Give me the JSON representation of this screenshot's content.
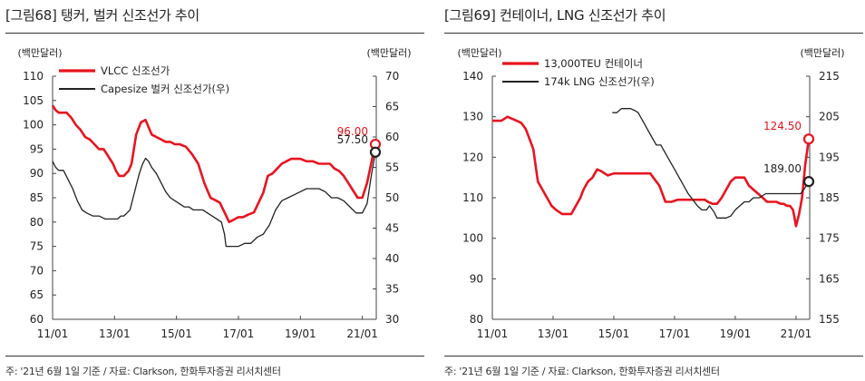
{
  "chart_data": [
    {
      "type": "line",
      "title": "[그림68]  탱커, 벌커 신조선가 추이",
      "ylabel_left": "(백만달러)",
      "ylabel_right": "(백만달러)",
      "ylim_left": [
        60,
        110
      ],
      "ylim_right": [
        30,
        70
      ],
      "yticks_left": [
        "60",
        "65",
        "70",
        "75",
        "80",
        "85",
        "90",
        "95",
        "100",
        "105",
        "110"
      ],
      "yticks_right": [
        "30",
        "35",
        "40",
        "45",
        "50",
        "55",
        "60",
        "65",
        "70"
      ],
      "xlim": [
        2011.0,
        2021.45
      ],
      "xticks": [
        {
          "v": 2011.0,
          "label": "11/01"
        },
        {
          "v": 2013.0,
          "label": "13/01"
        },
        {
          "v": 2015.0,
          "label": "15/01"
        },
        {
          "v": 2017.0,
          "label": "17/01"
        },
        {
          "v": 2019.0,
          "label": "19/01"
        },
        {
          "v": 2021.0,
          "label": "21/01"
        }
      ],
      "legend_placement": "top-left",
      "source": "주: '21년 6월 1일 기준 / 자료: Clarkson, 한화투자증권 리서치센터",
      "series": [
        {
          "name": "VLCC  신조선가",
          "axis": "left",
          "color": "#e8141f",
          "end_label": "96.00",
          "x": [
            2011.0,
            2011.1,
            2011.2,
            2011.45,
            2011.6,
            2011.75,
            2011.9,
            2012.05,
            2012.2,
            2012.35,
            2012.5,
            2012.65,
            2012.8,
            2012.95,
            2013.05,
            2013.15,
            2013.3,
            2013.45,
            2013.55,
            2013.7,
            2013.85,
            2014.0,
            2014.1,
            2014.2,
            2014.35,
            2014.5,
            2014.65,
            2014.8,
            2014.95,
            2015.1,
            2015.3,
            2015.5,
            2015.7,
            2015.9,
            2016.0,
            2016.1,
            2016.25,
            2016.4,
            2016.55,
            2016.7,
            2016.85,
            2017.0,
            2017.15,
            2017.3,
            2017.5,
            2017.65,
            2017.8,
            2017.95,
            2018.1,
            2018.25,
            2018.4,
            2018.55,
            2018.7,
            2018.85,
            2019.0,
            2019.2,
            2019.4,
            2019.6,
            2019.8,
            2019.95,
            2020.1,
            2020.25,
            2020.4,
            2020.55,
            2020.7,
            2020.85,
            2021.0,
            2021.15,
            2021.3,
            2021.42
          ],
          "y": [
            104,
            103,
            102.5,
            102.5,
            101.5,
            100,
            99,
            97.5,
            97,
            96,
            95,
            95,
            93.5,
            92,
            90.5,
            89.5,
            89.5,
            90.5,
            92,
            98,
            100.5,
            101,
            99.5,
            98,
            97.5,
            97,
            96.5,
            96.5,
            96,
            96,
            95.5,
            94,
            92,
            88,
            86.5,
            85,
            84.5,
            84,
            82,
            80,
            80.5,
            81,
            81,
            81.5,
            82,
            84,
            86,
            89.5,
            90,
            91,
            92,
            92.5,
            93,
            93,
            93,
            92.5,
            92.5,
            92,
            92,
            92,
            91,
            90.5,
            89.5,
            88,
            86.5,
            85,
            85,
            88,
            92.5,
            96
          ]
        },
        {
          "name": "Capesize  벌커  신조선가(우)",
          "axis": "right",
          "color": "#222222",
          "end_label": "57.50",
          "x": [
            2011.0,
            2011.1,
            2011.2,
            2011.35,
            2011.5,
            2011.65,
            2011.8,
            2011.95,
            2012.1,
            2012.3,
            2012.5,
            2012.7,
            2012.85,
            2013.0,
            2013.1,
            2013.2,
            2013.3,
            2013.4,
            2013.5,
            2013.6,
            2013.7,
            2013.8,
            2013.9,
            2014.0,
            2014.1,
            2014.2,
            2014.35,
            2014.5,
            2014.65,
            2014.8,
            2014.95,
            2015.1,
            2015.25,
            2015.4,
            2015.55,
            2015.7,
            2015.85,
            2016.0,
            2016.15,
            2016.3,
            2016.45,
            2016.55,
            2016.6,
            2016.8,
            2017.0,
            2017.2,
            2017.4,
            2017.6,
            2017.8,
            2018.0,
            2018.2,
            2018.4,
            2018.6,
            2018.8,
            2019.0,
            2019.2,
            2019.4,
            2019.6,
            2019.8,
            2020.0,
            2020.2,
            2020.4,
            2020.6,
            2020.8,
            2021.0,
            2021.15,
            2021.3,
            2021.42
          ],
          "y": [
            56,
            55,
            54.5,
            54.5,
            53,
            51.5,
            49.5,
            48,
            47.5,
            47,
            47,
            46.5,
            46.5,
            46.5,
            46.5,
            47,
            47,
            47.5,
            48,
            50,
            52,
            54,
            55.5,
            56.5,
            56,
            55,
            54,
            52.5,
            51,
            50,
            49.5,
            49,
            48.5,
            48.5,
            48,
            48,
            48,
            47.5,
            47,
            46.5,
            46,
            44,
            42,
            42,
            42,
            42.5,
            42.5,
            43.5,
            44,
            45.5,
            48,
            49.5,
            50,
            50.5,
            51,
            51.5,
            51.5,
            51.5,
            51,
            50,
            50,
            49.5,
            48.5,
            47.5,
            47.5,
            49,
            54,
            57.5
          ]
        }
      ]
    },
    {
      "type": "line",
      "title": "[그림69]  컨테이너, LNG 신조선가 추이",
      "ylabel_left": "(백만달러)",
      "ylabel_right": "(백만달러)",
      "ylim_left": [
        80,
        140
      ],
      "ylim_right": [
        155,
        215
      ],
      "yticks_left": [
        "80",
        "90",
        "100",
        "110",
        "120",
        "130",
        "140"
      ],
      "yticks_right": [
        "155",
        "165",
        "175",
        "185",
        "195",
        "205",
        "215"
      ],
      "xlim": [
        2011.0,
        2021.45
      ],
      "xticks": [
        {
          "v": 2011.0,
          "label": "11/01"
        },
        {
          "v": 2013.0,
          "label": "13/01"
        },
        {
          "v": 2015.0,
          "label": "15/01"
        },
        {
          "v": 2017.0,
          "label": "17/01"
        },
        {
          "v": 2019.0,
          "label": "19/01"
        },
        {
          "v": 2021.0,
          "label": "21/01"
        }
      ],
      "legend_placement": "top-center",
      "source": "주: '21년 6월 1일 기준 / 자료: Clarkson, 한화투자증권 리서치센터",
      "series": [
        {
          "name": "13,000TEU  컨테이너",
          "axis": "left",
          "color": "#e8141f",
          "end_label": "124.50",
          "x": [
            2011.0,
            2011.15,
            2011.3,
            2011.5,
            2011.65,
            2011.8,
            2011.95,
            2012.1,
            2012.25,
            2012.35,
            2012.5,
            2012.65,
            2012.8,
            2012.95,
            2013.1,
            2013.3,
            2013.5,
            2013.6,
            2013.75,
            2013.9,
            2014.0,
            2014.15,
            2014.3,
            2014.45,
            2014.6,
            2014.8,
            2015.0,
            2015.2,
            2015.4,
            2015.6,
            2015.8,
            2016.0,
            2016.1,
            2016.2,
            2016.3,
            2016.5,
            2016.7,
            2016.9,
            2017.1,
            2017.3,
            2017.5,
            2017.7,
            2017.9,
            2018.0,
            2018.1,
            2018.25,
            2018.4,
            2018.55,
            2018.7,
            2018.85,
            2019.0,
            2019.15,
            2019.3,
            2019.45,
            2019.6,
            2019.75,
            2019.9,
            2020.05,
            2020.2,
            2020.35,
            2020.5,
            2020.6,
            2020.7,
            2020.8,
            2020.9,
            2020.95,
            2021.0,
            2021.1,
            2021.2,
            2021.3,
            2021.42
          ],
          "y": [
            129,
            129,
            129,
            130,
            129.5,
            129,
            128.5,
            127,
            124,
            122,
            114,
            112,
            110,
            108,
            107,
            106,
            106,
            106,
            108,
            110,
            112,
            114,
            115,
            117,
            116.5,
            115.5,
            116,
            116,
            116,
            116,
            116,
            116,
            116,
            116,
            115,
            113,
            109,
            109,
            109.5,
            109.5,
            109.5,
            109.5,
            109.5,
            109.5,
            109,
            108.5,
            108.5,
            110,
            112,
            114,
            115,
            115,
            115,
            113,
            112,
            111,
            110,
            109,
            109,
            109,
            108.5,
            108.5,
            108,
            108,
            107,
            105,
            103,
            106,
            110,
            118,
            124.5
          ]
        },
        {
          "name": "174k  LNG  신조선가(우)",
          "axis": "right",
          "color": "#222222",
          "end_label": "189.00",
          "x": [
            2014.95,
            2015.1,
            2015.25,
            2015.4,
            2015.55,
            2015.7,
            2015.8,
            2015.95,
            2016.1,
            2016.25,
            2016.4,
            2016.55,
            2016.7,
            2016.85,
            2017.0,
            2017.15,
            2017.3,
            2017.45,
            2017.6,
            2017.75,
            2017.9,
            2018.05,
            2018.15,
            2018.3,
            2018.4,
            2018.55,
            2018.7,
            2018.85,
            2019.0,
            2019.15,
            2019.3,
            2019.45,
            2019.6,
            2019.8,
            2020.0,
            2020.2,
            2020.4,
            2020.6,
            2020.8,
            2021.0,
            2021.15,
            2021.3,
            2021.42
          ],
          "y": [
            206,
            206,
            207,
            207,
            207,
            206.5,
            206,
            204,
            202,
            200,
            198,
            198,
            196,
            194,
            192,
            190,
            188,
            186,
            184.5,
            183,
            182,
            182,
            183,
            181.5,
            180,
            180,
            180,
            180.5,
            182,
            183,
            184,
            184,
            185,
            185,
            186,
            186,
            186,
            186,
            186,
            186,
            186,
            187.5,
            189
          ]
        }
      ]
    }
  ]
}
